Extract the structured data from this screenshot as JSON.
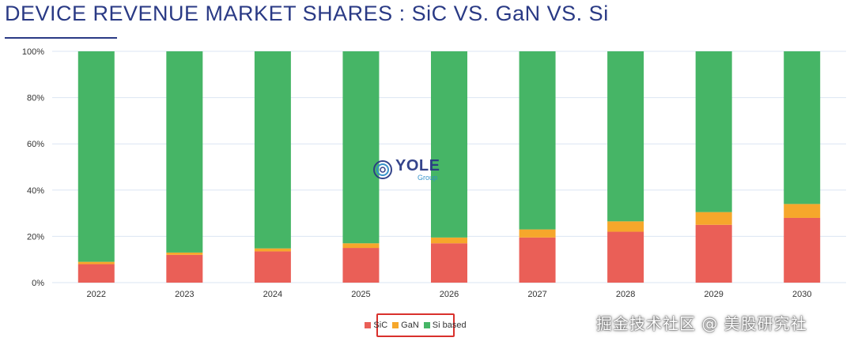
{
  "title": "DEVICE REVENUE MARKET SHARES : SiC VS. GaN VS. Si",
  "logo": {
    "main": "YOLE",
    "sub": "Group"
  },
  "watermark": "掘金技术社区 @ 美股研究社",
  "colors": {
    "SiC": "#ea5f57",
    "GaN": "#f6a72b",
    "Si based": "#46b566",
    "title": "#2a3a85",
    "grid": "#dbe6f3"
  },
  "chart_data": {
    "type": "bar",
    "stacked": true,
    "title": "DEVICE REVENUE MARKET SHARES : SiC VS. GaN VS. Si",
    "categories": [
      "2022",
      "2023",
      "2024",
      "2025",
      "2026",
      "2027",
      "2028",
      "2029",
      "2030"
    ],
    "series": [
      {
        "name": "SiC",
        "values": [
          8,
          12,
          13.5,
          15,
          17,
          19.5,
          22,
          25,
          28
        ]
      },
      {
        "name": "GaN",
        "values": [
          1,
          1,
          1.3,
          2,
          2.5,
          3.5,
          4.5,
          5.5,
          6
        ]
      },
      {
        "name": "Si based",
        "values": [
          91,
          87,
          85.2,
          83,
          80.5,
          77,
          73.5,
          69.5,
          66
        ]
      }
    ],
    "ylim": [
      0,
      100
    ],
    "yticks": [
      "0%",
      "20%",
      "40%",
      "60%",
      "80%",
      "100%"
    ],
    "grid": true,
    "legend": "bottom-center"
  }
}
